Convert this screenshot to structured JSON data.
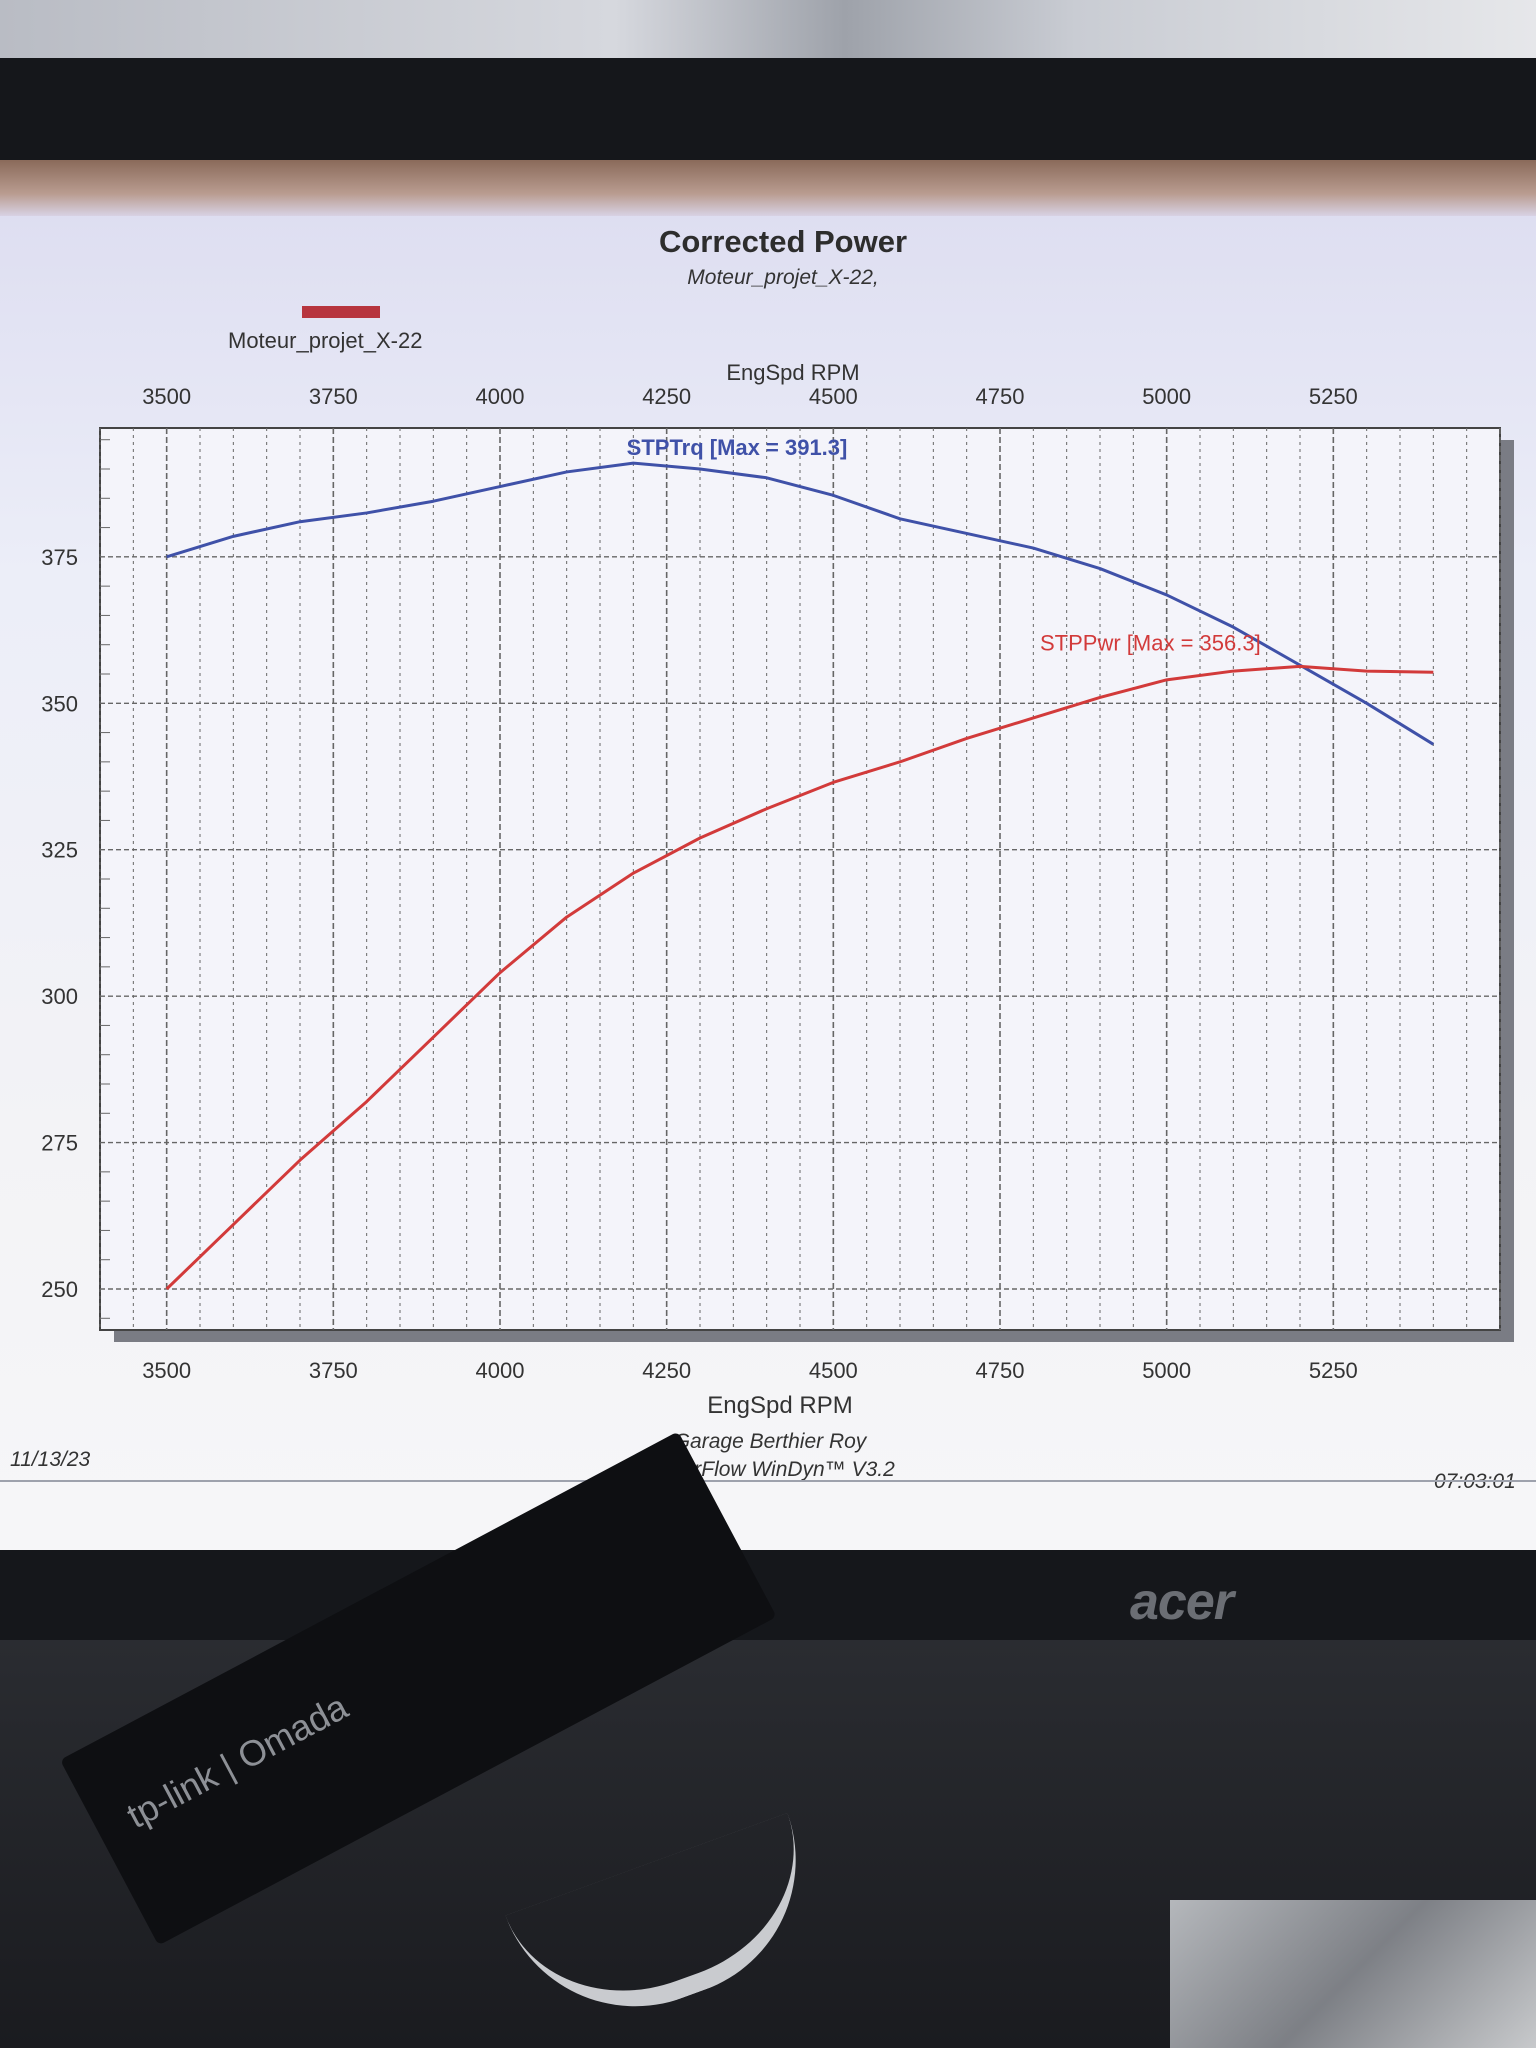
{
  "window": {
    "date": "11/13/23",
    "time": "07:03:01"
  },
  "footer": {
    "line1": "Garage Berthier Roy",
    "line2": "SuperFlow WinDyn™ V3.2"
  },
  "monitor": {
    "brand": "acer"
  },
  "device": {
    "label": "tp-link | Omada"
  },
  "colors": {
    "torque": "#3f51a8",
    "power": "#d23a3a",
    "grid": "#666666",
    "legend": "#b7343e"
  },
  "chart_data": {
    "type": "line",
    "title": "Corrected Power",
    "subtitle": "Moteur_projet_X-22,",
    "legend": [
      "Moteur_projet_X-22"
    ],
    "xlabel": "EngSpd RPM",
    "x_ticks": [
      3500,
      3750,
      4000,
      4250,
      4500,
      4750,
      5000,
      5250
    ],
    "y_ticks": [
      250,
      275,
      300,
      325,
      350,
      375
    ],
    "xlim": [
      3400,
      5500
    ],
    "ylim": [
      243,
      397
    ],
    "grid": true,
    "series": [
      {
        "name": "STPTrq",
        "annotation": "STPTrq [Max = 391.3]",
        "x": [
          3500,
          3600,
          3700,
          3800,
          3900,
          4000,
          4100,
          4200,
          4300,
          4400,
          4500,
          4600,
          4700,
          4800,
          4900,
          5000,
          5100,
          5200,
          5300,
          5400
        ],
        "y": [
          375,
          378.5,
          381,
          382.5,
          384.5,
          387,
          389.5,
          391,
          390,
          388.5,
          385.5,
          381.5,
          379,
          376.5,
          373,
          368.5,
          363,
          356.5,
          350,
          343
        ]
      },
      {
        "name": "STPPwr",
        "annotation": "STPPwr [Max = 356.3]",
        "x": [
          3500,
          3600,
          3700,
          3800,
          3900,
          4000,
          4100,
          4200,
          4300,
          4400,
          4500,
          4600,
          4700,
          4800,
          4900,
          5000,
          5100,
          5200,
          5300,
          5400
        ],
        "y": [
          250,
          261,
          272,
          282,
          293,
          304,
          313.5,
          321,
          327,
          332,
          336.5,
          340,
          344,
          347.5,
          351,
          354,
          355.5,
          356.3,
          355.5,
          355.3
        ]
      }
    ]
  }
}
